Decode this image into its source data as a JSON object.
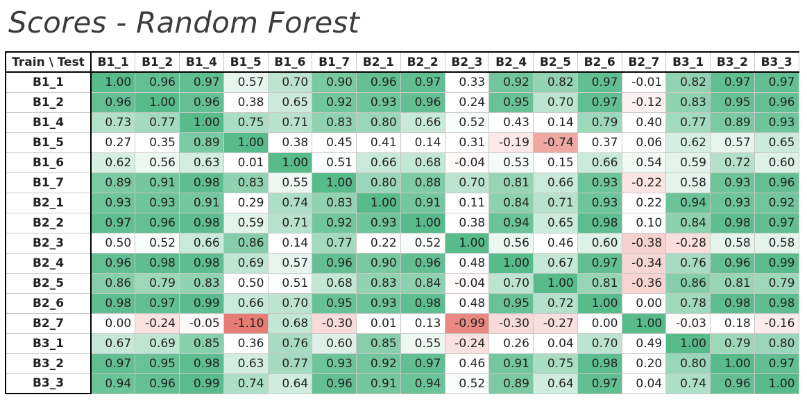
{
  "chart_data": {
    "type": "heatmap",
    "title": "Scores - Random Forest",
    "corner_label": "Train \\ Test",
    "columns": [
      "B1_1",
      "B1_2",
      "B1_4",
      "B1_5",
      "B1_6",
      "B1_7",
      "B2_1",
      "B2_2",
      "B2_3",
      "B2_4",
      "B2_5",
      "B2_6",
      "B2_7",
      "B3_1",
      "B3_2",
      "B3_3"
    ],
    "rows": [
      "B1_1",
      "B1_2",
      "B1_4",
      "B1_5",
      "B1_6",
      "B1_7",
      "B2_1",
      "B2_2",
      "B2_3",
      "B2_4",
      "B2_5",
      "B2_6",
      "B2_7",
      "B3_1",
      "B3_2",
      "B3_3"
    ],
    "values": [
      [
        1.0,
        0.96,
        0.97,
        0.57,
        0.7,
        0.9,
        0.96,
        0.97,
        0.33,
        0.92,
        0.82,
        0.97,
        -0.01,
        0.82,
        0.97,
        0.97
      ],
      [
        0.96,
        1.0,
        0.96,
        0.38,
        0.65,
        0.92,
        0.93,
        0.96,
        0.24,
        0.95,
        0.7,
        0.97,
        -0.12,
        0.83,
        0.95,
        0.96
      ],
      [
        0.73,
        0.77,
        1.0,
        0.75,
        0.71,
        0.83,
        0.8,
        0.66,
        0.52,
        0.43,
        0.14,
        0.79,
        0.4,
        0.77,
        0.89,
        0.93
      ],
      [
        0.27,
        0.35,
        0.89,
        1.0,
        0.38,
        0.45,
        0.41,
        0.14,
        0.31,
        -0.19,
        -0.74,
        0.37,
        0.06,
        0.62,
        0.57,
        0.65
      ],
      [
        0.62,
        0.56,
        0.63,
        0.01,
        1.0,
        0.51,
        0.66,
        0.68,
        -0.04,
        0.53,
        0.15,
        0.66,
        0.54,
        0.59,
        0.72,
        0.6
      ],
      [
        0.89,
        0.91,
        0.98,
        0.83,
        0.55,
        1.0,
        0.8,
        0.88,
        0.7,
        0.81,
        0.66,
        0.93,
        -0.22,
        0.58,
        0.93,
        0.96
      ],
      [
        0.93,
        0.93,
        0.91,
        0.29,
        0.74,
        0.83,
        1.0,
        0.91,
        0.11,
        0.84,
        0.71,
        0.93,
        0.22,
        0.94,
        0.93,
        0.92
      ],
      [
        0.97,
        0.96,
        0.98,
        0.59,
        0.71,
        0.92,
        0.93,
        1.0,
        0.38,
        0.94,
        0.65,
        0.98,
        0.1,
        0.84,
        0.98,
        0.97
      ],
      [
        0.5,
        0.52,
        0.66,
        0.86,
        0.14,
        0.77,
        0.22,
        0.52,
        1.0,
        0.56,
        0.46,
        0.6,
        -0.38,
        -0.28,
        0.58,
        0.58
      ],
      [
        0.96,
        0.98,
        0.98,
        0.69,
        0.57,
        0.96,
        0.9,
        0.96,
        0.48,
        1.0,
        0.67,
        0.97,
        -0.34,
        0.76,
        0.96,
        0.99
      ],
      [
        0.86,
        0.79,
        0.83,
        0.5,
        0.51,
        0.68,
        0.83,
        0.84,
        -0.04,
        0.7,
        1.0,
        0.81,
        -0.36,
        0.86,
        0.81,
        0.79
      ],
      [
        0.98,
        0.97,
        0.99,
        0.66,
        0.7,
        0.95,
        0.93,
        0.98,
        0.48,
        0.95,
        0.72,
        1.0,
        0.0,
        0.78,
        0.98,
        0.98
      ],
      [
        0.0,
        -0.24,
        -0.05,
        -1.1,
        0.68,
        -0.3,
        0.01,
        0.13,
        -0.99,
        -0.3,
        -0.27,
        0.0,
        1.0,
        -0.03,
        0.18,
        -0.16
      ],
      [
        0.67,
        0.69,
        0.85,
        0.36,
        0.76,
        0.6,
        0.85,
        0.55,
        -0.24,
        0.26,
        0.04,
        0.7,
        0.49,
        1.0,
        0.79,
        0.8
      ],
      [
        0.97,
        0.95,
        0.98,
        0.63,
        0.77,
        0.93,
        0.92,
        0.97,
        0.46,
        0.91,
        0.75,
        0.98,
        0.2,
        0.8,
        1.0,
        0.97
      ],
      [
        0.94,
        0.96,
        0.99,
        0.74,
        0.64,
        0.96,
        0.91,
        0.94,
        0.52,
        0.89,
        0.64,
        0.97,
        0.04,
        0.74,
        0.96,
        1.0
      ]
    ],
    "color_scale": {
      "negative": "#e67c73",
      "neutral": "#ffffff",
      "positive": "#57bb8a"
    }
  }
}
